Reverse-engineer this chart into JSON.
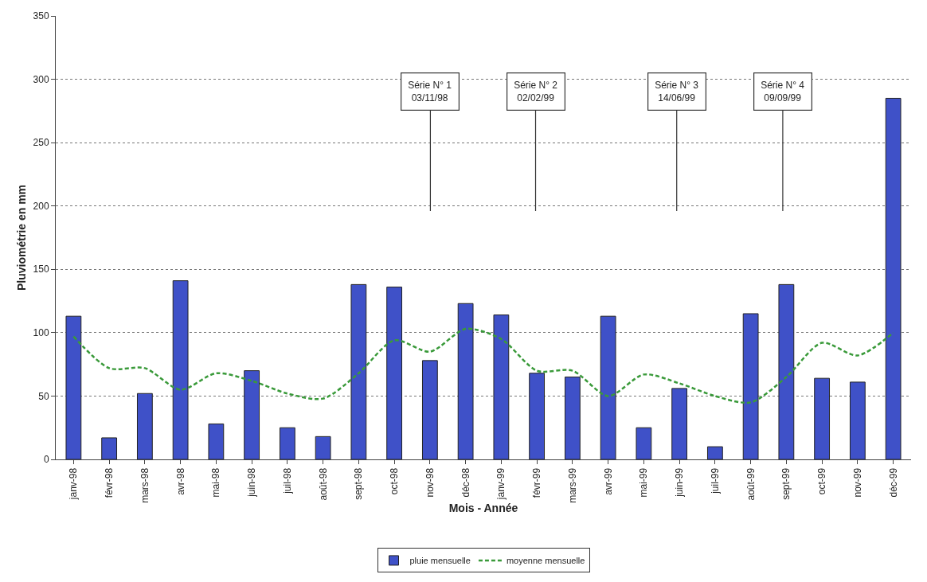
{
  "chart_data": {
    "type": "bar",
    "xlabel": "Mois - Année",
    "ylabel": "Pluviométrie en mm",
    "categories": [
      "janv-98",
      "févr-98",
      "mars-98",
      "avr-98",
      "mai-98",
      "juin-98",
      "juil-98",
      "août-98",
      "sept-98",
      "oct-98",
      "nov-98",
      "déc-98",
      "janv-99",
      "févr-99",
      "mars-99",
      "avr-99",
      "mai-99",
      "juin-99",
      "juil-99",
      "août-99",
      "sept-99",
      "oct-99",
      "nov-99",
      "déc-99"
    ],
    "series": [
      {
        "name": "pluie mensuelle",
        "color": "#3f51c8",
        "values": [
          113,
          17,
          52,
          141,
          28,
          70,
          25,
          18,
          138,
          136,
          78,
          123,
          114,
          68,
          65,
          113,
          25,
          56,
          10,
          115,
          138,
          64,
          61,
          285
        ]
      },
      {
        "name": "moyenne mensuelle",
        "type": "line",
        "color": "#3a9a3a",
        "line_style": "dashed",
        "values": [
          97,
          72,
          72,
          55,
          68,
          62,
          52,
          48,
          68,
          94,
          85,
          103,
          95,
          70,
          70,
          50,
          67,
          60,
          50,
          45,
          65,
          92,
          82,
          100
        ]
      }
    ],
    "ylim": [
      0,
      350
    ],
    "yticks": [
      0,
      50,
      100,
      150,
      200,
      250,
      300,
      350
    ],
    "grid": "y",
    "legend": "bottom",
    "annotations": [
      "Série N° 1\n03/11/98",
      "Série N° 2\n02/02/99",
      "Série N° 3\n14/06/99",
      "Série N° 4\n09/09/99"
    ]
  }
}
